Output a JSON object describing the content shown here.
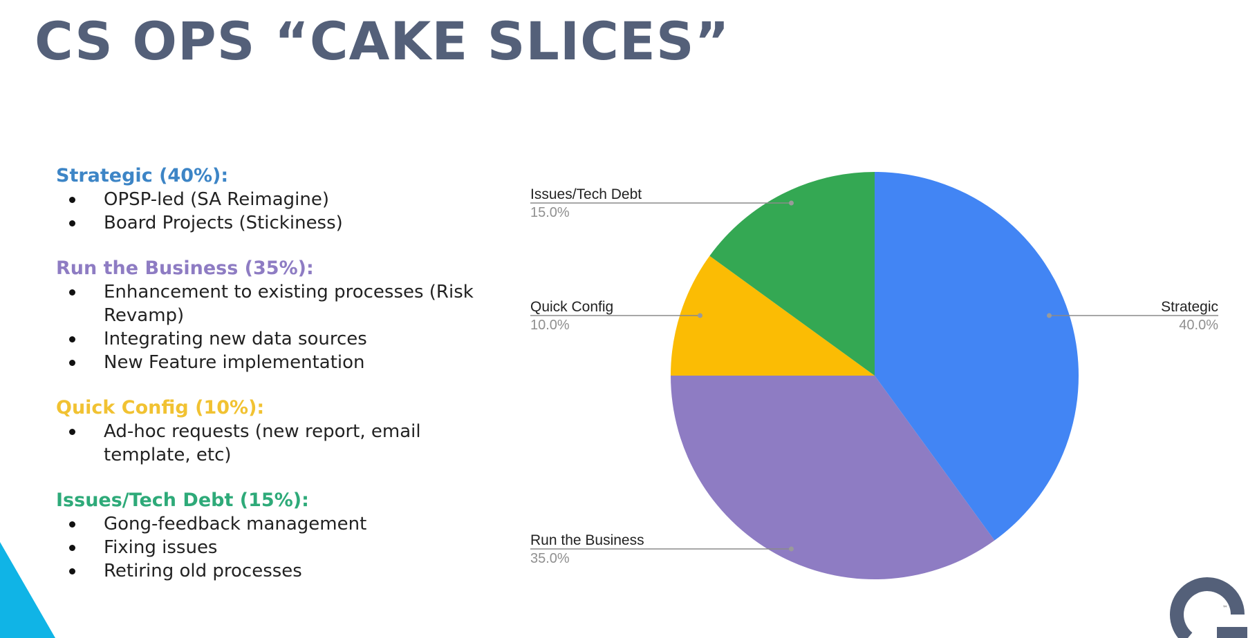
{
  "title": "CS OPS “CAKE SLICES”",
  "colors": {
    "title": "#546079",
    "strategic": "#4285F4",
    "run_the_business": "#8E7CC3",
    "quick_config": "#FBBC04",
    "issues_tech_debt": "#34A853",
    "heading_strategic": "#3D85C6",
    "heading_run": "#8E7CC3",
    "heading_quick": "#F1C232",
    "heading_issues": "#2EAA79",
    "accent_triangle": "#10B4E6",
    "logo": "#546079"
  },
  "sections": [
    {
      "heading": "Strategic (40%):",
      "color_key": "heading_strategic",
      "bullets": [
        "OPSP-led (SA Reimagine)",
        "Board Projects (Stickiness)"
      ]
    },
    {
      "heading": "Run the Business (35%):",
      "color_key": "heading_run",
      "bullets": [
        "Enhancement to existing processes (Risk Revamp)",
        "Integrating new data sources",
        "New Feature implementation"
      ]
    },
    {
      "heading": "Quick Config (10%):",
      "color_key": "heading_quick",
      "bullets": [
        "Ad-hoc requests (new report, email template, etc)"
      ]
    },
    {
      "heading": "Issues/Tech Debt (15%):",
      "color_key": "heading_issues",
      "bullets": [
        "Gong-feedback management",
        "Fixing issues",
        "Retiring old processes"
      ]
    }
  ],
  "chart_data": {
    "type": "pie",
    "title": "",
    "categories": [
      "Strategic",
      "Run the Business",
      "Quick Config",
      "Issues/Tech Debt"
    ],
    "values": [
      40.0,
      35.0,
      10.0,
      15.0
    ],
    "value_labels": [
      "40.0%",
      "35.0%",
      "10.0%",
      "15.0%"
    ],
    "colors": [
      "#4285F4",
      "#8E7CC3",
      "#FBBC04",
      "#34A853"
    ],
    "start_angle": "12 o'clock",
    "direction": "clockwise",
    "legend": "none (leader-line labels)"
  },
  "logo": {
    "trademark": "™"
  }
}
